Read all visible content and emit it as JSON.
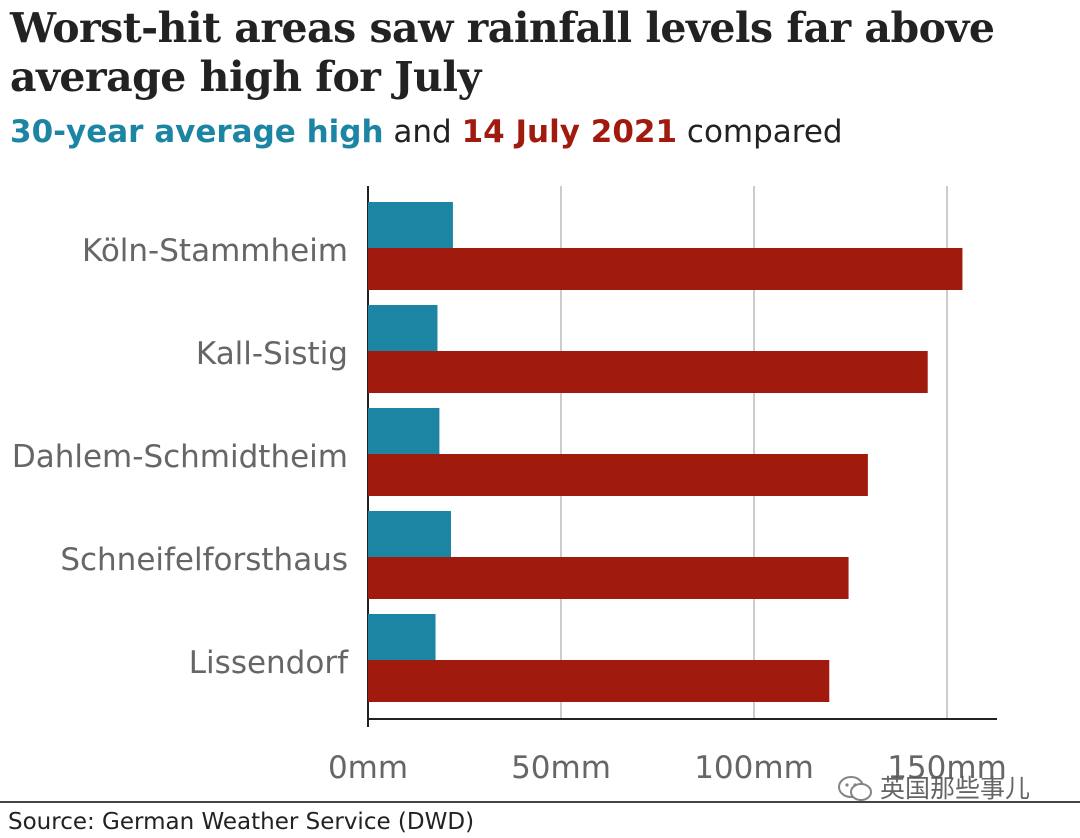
{
  "title": "Worst-hit areas saw rainfall levels far above average high for July",
  "subtitle": {
    "part1": "30-year average high",
    "part2": " and ",
    "part3": "14 July 2021",
    "part4": " compared"
  },
  "source": "Source: German Weather Service (DWD)",
  "watermark": "英国那些事儿",
  "colors": {
    "average": "#1c85a3",
    "july14": "#a01a0e",
    "grid": "#cccccc",
    "axis": "#222222"
  },
  "chart_data": {
    "type": "bar",
    "orientation": "horizontal",
    "categories": [
      "Köln-Stammheim",
      "Kall-Sistig",
      "Dahlem-Schmidtheim",
      "Schneifelforsthaus",
      "Lissendorf"
    ],
    "series": [
      {
        "name": "30-year average high",
        "values": [
          22,
          18,
          18.5,
          21.5,
          17.5
        ]
      },
      {
        "name": "14 July 2021",
        "values": [
          154,
          145,
          129.5,
          124.5,
          119.5
        ]
      }
    ],
    "xticks": [
      0,
      50,
      100,
      150
    ],
    "xtick_labels": [
      "0mm",
      "50mm",
      "100mm",
      "150mm"
    ],
    "xlim": [
      0,
      163
    ],
    "grid": true
  }
}
